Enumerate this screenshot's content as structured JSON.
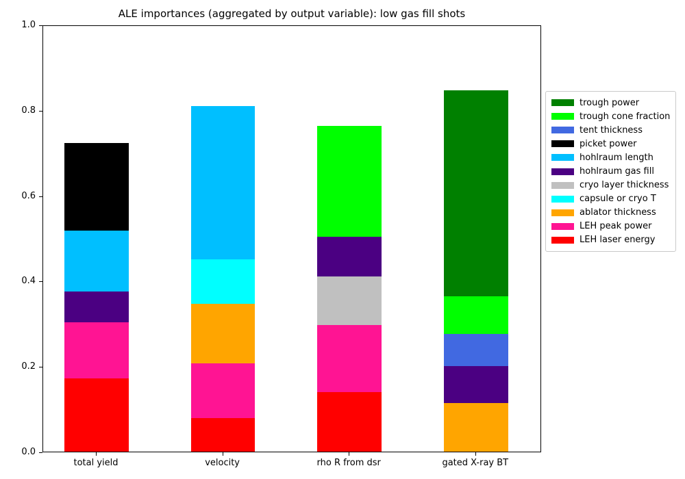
{
  "chart_data": {
    "type": "bar",
    "stacked": true,
    "title": "ALE importances (aggregated by output variable): low gas fill shots",
    "xlabel": "",
    "ylabel": "",
    "ylim": [
      0,
      1.0
    ],
    "yticks": [
      "0.0",
      "0.2",
      "0.4",
      "0.6",
      "0.8",
      "1.0"
    ],
    "grid": false,
    "legend_position": "center-right-outside",
    "categories": [
      "total yield",
      "velocity",
      "rho R from dsr",
      "gated X-ray BT"
    ],
    "series": [
      {
        "name": "trough power",
        "color": "#008000",
        "values": [
          0,
          0,
          0,
          0.482
        ]
      },
      {
        "name": "trough cone fraction",
        "color": "#00FF00",
        "values": [
          0,
          0,
          0.259,
          0.088
        ]
      },
      {
        "name": "tent thickness",
        "color": "#4169E1",
        "values": [
          0,
          0,
          0,
          0.076
        ]
      },
      {
        "name": "picket power",
        "color": "#000000",
        "values": [
          0.204,
          0,
          0,
          0
        ]
      },
      {
        "name": "hohlraum length",
        "color": "#00BFFF",
        "values": [
          0.143,
          0.358,
          0,
          0
        ]
      },
      {
        "name": "hohlraum gas fill",
        "color": "#4B0082",
        "values": [
          0.072,
          0,
          0.094,
          0.086
        ]
      },
      {
        "name": "cryo layer thickness",
        "color": "#C0C0C0",
        "values": [
          0,
          0,
          0.113,
          0
        ]
      },
      {
        "name": "capsule or cryo T",
        "color": "#00FFFF",
        "values": [
          0,
          0.105,
          0,
          0
        ]
      },
      {
        "name": "ablator thickness",
        "color": "#FFA500",
        "values": [
          0,
          0.14,
          0,
          0.114
        ]
      },
      {
        "name": "LEH peak power",
        "color": "#FF1493",
        "values": [
          0.132,
          0.128,
          0.158,
          0
        ]
      },
      {
        "name": "LEH laser energy",
        "color": "#FF0000",
        "values": [
          0.171,
          0.078,
          0.139,
          0
        ]
      }
    ],
    "stack_totals": [
      0.722,
      0.809,
      0.763,
      0.846
    ]
  }
}
